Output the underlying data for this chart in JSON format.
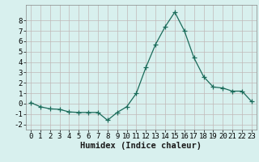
{
  "x": [
    0,
    1,
    2,
    3,
    4,
    5,
    6,
    7,
    8,
    9,
    10,
    11,
    12,
    13,
    14,
    15,
    16,
    17,
    18,
    19,
    20,
    21,
    22,
    23
  ],
  "y": [
    0.1,
    -0.3,
    -0.5,
    -0.55,
    -0.8,
    -0.85,
    -0.85,
    -0.85,
    -1.6,
    -0.85,
    -0.3,
    1.0,
    3.5,
    5.7,
    7.4,
    8.8,
    7.0,
    4.4,
    2.6,
    1.6,
    1.5,
    1.2,
    1.2,
    0.2
  ],
  "line_color": "#1a6b5a",
  "marker": "+",
  "marker_size": 4,
  "bg_color": "#d8f0ee",
  "grid_color": "#c0b8b8",
  "xlabel": "Humidex (Indice chaleur)",
  "xlabel_fontsize": 7.5,
  "tick_fontsize": 6.5,
  "ylim": [
    -2.5,
    9.5
  ],
  "xlim": [
    -0.5,
    23.5
  ],
  "yticks": [
    -2,
    -1,
    0,
    1,
    2,
    3,
    4,
    5,
    6,
    7,
    8
  ],
  "xticks": [
    0,
    1,
    2,
    3,
    4,
    5,
    6,
    7,
    8,
    9,
    10,
    11,
    12,
    13,
    14,
    15,
    16,
    17,
    18,
    19,
    20,
    21,
    22,
    23
  ]
}
